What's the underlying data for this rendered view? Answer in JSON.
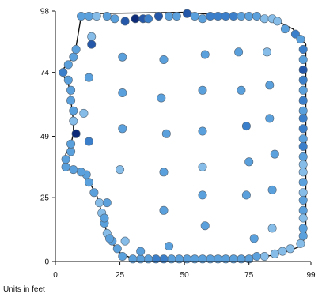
{
  "chart_data": {
    "type": "scatter",
    "title": "",
    "xlabel": "Units in feet",
    "ylabel": "",
    "xlim": [
      0,
      99
    ],
    "ylim": [
      0,
      98
    ],
    "x_ticks": [
      0,
      25,
      50,
      75,
      99
    ],
    "y_ticks": [
      0,
      25,
      49,
      74,
      98
    ],
    "grid": false,
    "legend": "none",
    "colors": {
      "point_stroke": "#556677",
      "boundary": "#111111",
      "axis": "#111111"
    },
    "color_scale": [
      "#dbeafb",
      "#b6d6f2",
      "#85bde8",
      "#5aa0dc",
      "#3b7fca",
      "#2558a8",
      "#0c2a78"
    ],
    "points": [
      [
        10,
        96,
        3
      ],
      [
        13,
        96,
        3
      ],
      [
        16,
        96,
        2
      ],
      [
        20,
        96,
        3
      ],
      [
        23,
        95,
        3
      ],
      [
        27,
        94,
        5
      ],
      [
        31,
        95,
        6
      ],
      [
        34,
        95,
        5
      ],
      [
        36,
        95,
        4
      ],
      [
        40,
        96,
        5
      ],
      [
        44,
        96,
        3
      ],
      [
        47,
        96,
        3
      ],
      [
        51,
        97,
        5
      ],
      [
        54,
        96,
        3
      ],
      [
        57,
        95,
        3
      ],
      [
        60,
        96,
        4
      ],
      [
        63,
        96,
        4
      ],
      [
        66,
        96,
        4
      ],
      [
        69,
        96,
        4
      ],
      [
        72,
        96,
        3
      ],
      [
        75,
        96,
        3
      ],
      [
        78,
        96,
        3
      ],
      [
        81,
        95,
        2
      ],
      [
        84,
        95,
        2
      ],
      [
        86,
        94,
        2
      ],
      [
        89,
        91,
        3
      ],
      [
        93,
        89,
        4
      ],
      [
        95,
        87,
        3
      ],
      [
        96,
        83,
        4
      ],
      [
        96,
        79,
        3
      ],
      [
        96,
        75,
        5
      ],
      [
        96,
        71,
        4
      ],
      [
        96,
        67,
        3
      ],
      [
        96,
        63,
        4
      ],
      [
        96,
        59,
        3
      ],
      [
        96,
        56,
        4
      ],
      [
        96,
        52,
        4
      ],
      [
        96,
        48,
        3
      ],
      [
        96,
        45,
        4
      ],
      [
        96,
        41,
        3
      ],
      [
        96,
        38,
        2
      ],
      [
        96,
        35,
        2
      ],
      [
        96,
        31,
        3
      ],
      [
        96,
        27,
        2
      ],
      [
        96,
        24,
        3
      ],
      [
        96,
        20,
        3
      ],
      [
        96,
        17,
        2
      ],
      [
        96,
        13,
        3
      ],
      [
        96,
        10,
        3
      ],
      [
        95,
        7,
        2
      ],
      [
        91,
        5,
        2
      ],
      [
        88,
        4,
        2
      ],
      [
        85,
        3,
        2
      ],
      [
        81,
        2,
        2
      ],
      [
        78,
        2,
        3
      ],
      [
        75,
        1,
        3
      ],
      [
        72,
        1,
        3
      ],
      [
        69,
        1,
        3
      ],
      [
        66,
        1,
        3
      ],
      [
        63,
        1,
        3
      ],
      [
        60,
        1,
        3
      ],
      [
        57,
        1,
        3
      ],
      [
        54,
        1,
        3
      ],
      [
        51,
        1,
        3
      ],
      [
        48,
        1,
        3
      ],
      [
        45,
        1,
        3
      ],
      [
        42,
        1,
        4
      ],
      [
        39,
        1,
        4
      ],
      [
        36,
        1,
        3
      ],
      [
        33,
        1,
        3
      ],
      [
        30,
        1,
        3
      ],
      [
        26,
        2,
        3
      ],
      [
        24,
        5,
        3
      ],
      [
        22,
        8,
        3
      ],
      [
        20,
        11,
        2
      ],
      [
        19,
        15,
        3
      ],
      [
        18,
        19,
        2
      ],
      [
        17,
        23,
        2
      ],
      [
        15,
        27,
        3
      ],
      [
        13,
        31,
        3
      ],
      [
        12,
        34,
        3
      ],
      [
        10,
        35,
        3
      ],
      [
        7,
        36,
        3
      ],
      [
        4,
        37,
        3
      ],
      [
        4,
        40,
        3
      ],
      [
        6,
        43,
        3
      ],
      [
        6,
        46,
        3
      ],
      [
        8,
        50,
        6
      ],
      [
        7,
        55,
        2
      ],
      [
        7,
        59,
        3
      ],
      [
        6,
        63,
        3
      ],
      [
        6,
        67,
        3
      ],
      [
        5,
        71,
        3
      ],
      [
        3,
        74,
        4
      ],
      [
        5,
        77,
        3
      ],
      [
        7,
        80,
        3
      ],
      [
        8,
        83,
        3
      ],
      [
        14,
        88,
        2
      ],
      [
        14,
        85,
        5
      ],
      [
        26,
        80,
        3
      ],
      [
        42,
        79,
        3
      ],
      [
        58,
        81,
        3
      ],
      [
        71,
        82,
        3
      ],
      [
        82,
        82,
        2
      ],
      [
        13,
        72,
        3
      ],
      [
        26,
        66,
        3
      ],
      [
        41,
        64,
        3
      ],
      [
        57,
        67,
        3
      ],
      [
        72,
        67,
        3
      ],
      [
        83,
        69,
        3
      ],
      [
        11,
        58,
        2
      ],
      [
        26,
        52,
        3
      ],
      [
        43,
        50,
        3
      ],
      [
        57,
        51,
        3
      ],
      [
        74,
        53,
        4
      ],
      [
        83,
        56,
        3
      ],
      [
        13,
        47,
        4
      ],
      [
        25,
        36,
        2
      ],
      [
        42,
        35,
        3
      ],
      [
        57,
        37,
        2
      ],
      [
        75,
        39,
        3
      ],
      [
        85,
        42,
        3
      ],
      [
        57,
        26,
        3
      ],
      [
        74,
        26,
        3
      ],
      [
        84,
        28,
        3
      ],
      [
        20,
        23,
        3
      ],
      [
        42,
        20,
        3
      ],
      [
        19,
        17,
        3
      ],
      [
        58,
        14,
        3
      ],
      [
        84,
        13,
        2
      ],
      [
        21,
        9,
        3
      ],
      [
        27,
        8,
        2
      ],
      [
        44,
        6,
        3
      ],
      [
        77,
        9,
        3
      ],
      [
        33,
        4,
        3
      ]
    ]
  }
}
